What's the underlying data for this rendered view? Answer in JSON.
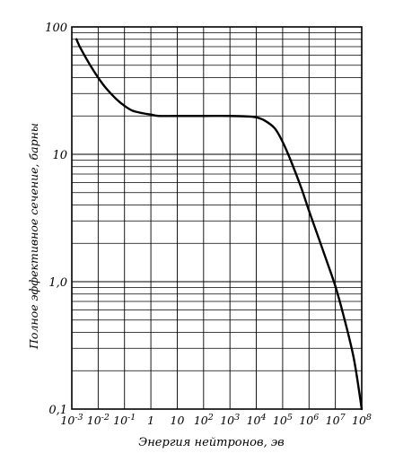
{
  "chart_data": {
    "type": "line",
    "xlabel": "Энергия нейтронов, эв",
    "ylabel": "Полное эффективное сечение, барны",
    "x_scale": "log",
    "y_scale": "log",
    "xlim": [
      0.001,
      100000000
    ],
    "ylim": [
      0.1,
      100
    ],
    "grid": true,
    "x_ticks": [
      {
        "value": 0.001,
        "base": "10",
        "exp": "-3"
      },
      {
        "value": 0.01,
        "base": "10",
        "exp": "-2"
      },
      {
        "value": 0.1,
        "base": "10",
        "exp": "-1"
      },
      {
        "value": 1,
        "base": "1",
        "exp": ""
      },
      {
        "value": 10,
        "base": "10",
        "exp": ""
      },
      {
        "value": 100,
        "base": "10",
        "exp": "2"
      },
      {
        "value": 1000,
        "base": "10",
        "exp": "3"
      },
      {
        "value": 10000,
        "base": "10",
        "exp": "4"
      },
      {
        "value": 100000,
        "base": "10",
        "exp": "5"
      },
      {
        "value": 1000000,
        "base": "10",
        "exp": "6"
      },
      {
        "value": 10000000,
        "base": "10",
        "exp": "7"
      },
      {
        "value": 100000000,
        "base": "10",
        "exp": "8"
      }
    ],
    "y_ticks": [
      {
        "value": 0.1,
        "label": "0,1"
      },
      {
        "value": 1,
        "label": "1,0"
      },
      {
        "value": 10,
        "label": "10"
      },
      {
        "value": 100,
        "label": "100"
      }
    ],
    "series": [
      {
        "x": [
          0.0015,
          0.002,
          0.003,
          0.005,
          0.01,
          0.02,
          0.05,
          0.1,
          0.2,
          0.5,
          1,
          2,
          10,
          100,
          1000,
          5000,
          10000,
          20000,
          50000,
          100000,
          200000,
          500000,
          1000000,
          2000000,
          5000000,
          10000000,
          20000000,
          50000000,
          100000000
        ],
        "y": [
          80,
          70,
          60,
          50,
          40,
          33,
          27,
          24,
          22,
          21,
          20.5,
          20,
          20,
          20,
          20,
          19.8,
          19.5,
          18.5,
          16,
          12.5,
          9,
          5.5,
          3.6,
          2.4,
          1.4,
          0.92,
          0.55,
          0.25,
          0.1
        ]
      }
    ]
  }
}
